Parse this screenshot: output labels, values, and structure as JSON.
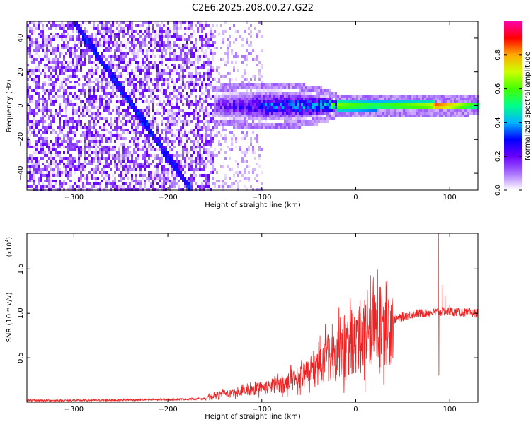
{
  "title": "C2E6.2025.208.00.27.G22",
  "colors": {
    "snr_line": "#ee2222",
    "axis": "#000000",
    "spec_scale": [
      "#ffffff",
      "#e0ccff",
      "#a066ff",
      "#6600ff",
      "#0000ff",
      "#00bbff",
      "#00ff66",
      "#ccff00",
      "#ffaa00",
      "#ff0000",
      "#ff00aa"
    ]
  },
  "chart_data": [
    {
      "type": "heatmap",
      "title": "C2E6.2025.208.00.27.G22",
      "xlabel": "Height of straight line (km)",
      "ylabel": "Frequency (Hz)",
      "xlim": [
        -350,
        130
      ],
      "ylim": [
        -50,
        50
      ],
      "xticks": [
        -300,
        -200,
        -100,
        0,
        100
      ],
      "yticks": [
        -40,
        -20,
        0,
        20,
        40
      ],
      "colorbar": {
        "label": "Normalized spectral amplitude",
        "range": [
          0.0,
          1.0
        ],
        "ticks": [
          "0.0",
          "0.2",
          "0.4",
          "0.6",
          "0.8"
        ],
        "tick_values": [
          0.0,
          0.2,
          0.4,
          0.6,
          0.8
        ]
      },
      "features": [
        {
          "name": "diagonal streak",
          "from": [
            -300,
            50
          ],
          "to": [
            -175,
            -50
          ]
        },
        {
          "name": "central band",
          "x_range": [
            -150,
            130
          ],
          "frequency_hz": 0
        }
      ],
      "band_half_width_hz": [
        {
          "x": -150,
          "hw": 8
        },
        {
          "x": -100,
          "hw": 10
        },
        {
          "x": -60,
          "hw": 9
        },
        {
          "x": -30,
          "hw": 6
        },
        {
          "x": -20,
          "hw": 3
        },
        {
          "x": 130,
          "hw": 2
        }
      ],
      "band_peak_amplitude": [
        {
          "x": -150,
          "a": 0.2
        },
        {
          "x": -100,
          "a": 0.35
        },
        {
          "x": -40,
          "a": 0.45
        },
        {
          "x": -20,
          "a": 0.7
        },
        {
          "x": 20,
          "a": 0.6
        },
        {
          "x": 80,
          "a": 0.75
        },
        {
          "x": 85,
          "a": 0.95
        },
        {
          "x": 95,
          "a": 0.9
        },
        {
          "x": 130,
          "a": 0.6
        }
      ]
    },
    {
      "type": "line",
      "xlabel": "Height of straight line (km)",
      "ylabel": "SNR (10 * v/v)",
      "y_multiplier": "(x10",
      "y_multiplier_exp": "4",
      "xlim": [
        -350,
        130
      ],
      "ylim": [
        0,
        1.9
      ],
      "xticks": [
        -300,
        -200,
        -100,
        0,
        100
      ],
      "yticks": [
        "0.5",
        "1.0",
        "1.5"
      ],
      "ytick_values": [
        0.5,
        1.0,
        1.5
      ],
      "series": [
        {
          "envelope": [
            {
              "x": -350,
              "y": 0.02
            },
            {
              "x": -300,
              "y": 0.02
            },
            {
              "x": -200,
              "y": 0.03
            },
            {
              "x": -160,
              "y": 0.04
            },
            {
              "x": -150,
              "y": 0.08
            },
            {
              "x": -120,
              "y": 0.12
            },
            {
              "x": -100,
              "y": 0.15
            },
            {
              "x": -80,
              "y": 0.2
            },
            {
              "x": -60,
              "y": 0.28
            },
            {
              "x": -40,
              "y": 0.38
            },
            {
              "x": -30,
              "y": 0.5
            },
            {
              "x": -20,
              "y": 0.6
            },
            {
              "x": -10,
              "y": 0.65
            },
            {
              "x": 10,
              "y": 0.72
            },
            {
              "x": 20,
              "y": 0.8
            },
            {
              "x": 30,
              "y": 0.88
            },
            {
              "x": 40,
              "y": 0.93
            },
            {
              "x": 60,
              "y": 0.99
            },
            {
              "x": 80,
              "y": 1.01
            },
            {
              "x": 100,
              "y": 1.02
            },
            {
              "x": 130,
              "y": 1.0
            }
          ],
          "spikes": [
            {
              "x": -45,
              "y": 0.58
            },
            {
              "x": -38,
              "y": 0.75
            },
            {
              "x": -32,
              "y": 0.85
            },
            {
              "x": -25,
              "y": 0.88
            },
            {
              "x": -12,
              "y": 0.98
            },
            {
              "x": -5,
              "y": 0.9
            },
            {
              "x": 0,
              "y": 0.58
            },
            {
              "x": 5,
              "y": 1.0
            },
            {
              "x": 10,
              "y": 0.12
            },
            {
              "x": 88,
              "y": 1.93
            },
            {
              "x": 88.5,
              "y": 0.3
            },
            {
              "x": 92,
              "y": 1.32
            },
            {
              "x": 95,
              "y": 1.2
            },
            {
              "x": 100,
              "y": 1.1
            }
          ]
        }
      ]
    }
  ]
}
